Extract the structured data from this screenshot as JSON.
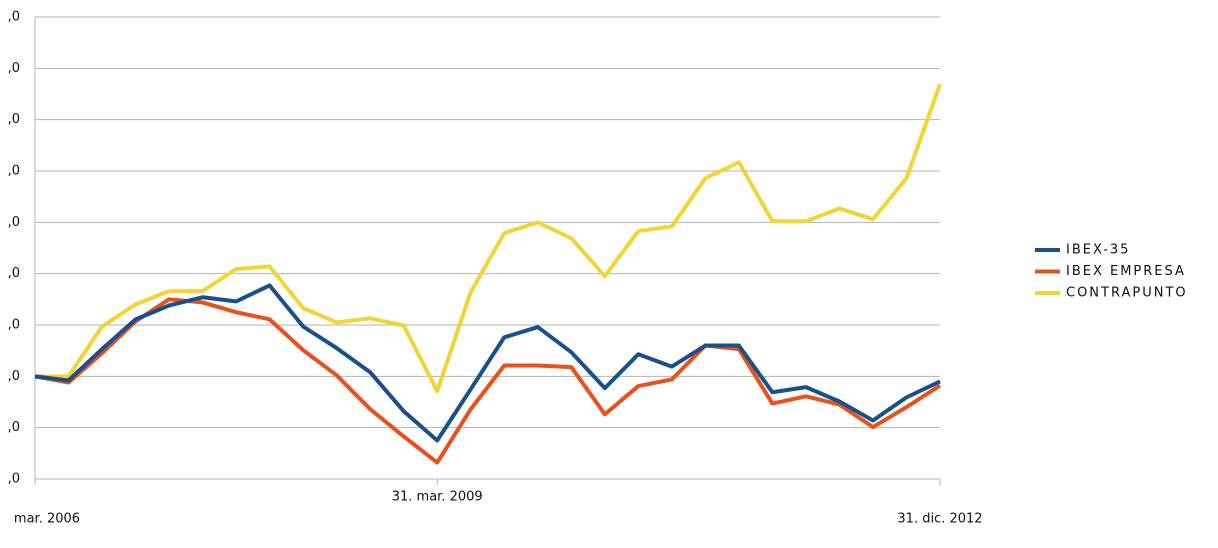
{
  "chart_data": {
    "type": "line",
    "categories": [
      "mar. 2006",
      null,
      null,
      null,
      null,
      null,
      null,
      null,
      null,
      null,
      null,
      null,
      "31. mar. 2009",
      null,
      null,
      null,
      null,
      null,
      null,
      null,
      null,
      null,
      null,
      null,
      null,
      null,
      null,
      "31. dic. 2012"
    ],
    "ylim": [
      80,
      170
    ],
    "yticks": [
      {
        "value": 80,
        "label": ",0"
      },
      {
        "value": 90,
        "label": ",0"
      },
      {
        "value": 100,
        "label": ",0"
      },
      {
        "value": 110,
        "label": ",0"
      },
      {
        "value": 120,
        "label": ",0"
      },
      {
        "value": 130,
        "label": ",0"
      },
      {
        "value": 140,
        "label": ",0"
      },
      {
        "value": 150,
        "label": ",0"
      },
      {
        "value": 160,
        "label": ",0"
      },
      {
        "value": 170,
        "label": ",0"
      }
    ],
    "grid": true,
    "legend": "right",
    "series": [
      {
        "name": "IBEX-35",
        "color": "#17508a",
        "values": [
          100,
          99.2,
          105.3,
          111.1,
          113.8,
          115.4,
          114.6,
          117.7,
          109.7,
          105.5,
          100.8,
          93.2,
          87.5,
          97.5,
          107.6,
          109.6,
          104.7,
          97.7,
          104.3,
          101.9,
          106,
          106,
          96.9,
          97.9,
          95.1,
          91.4,
          95.9,
          99
        ]
      },
      {
        "name": "IBEX EMPRESA",
        "color": "#e8501c",
        "values": [
          100,
          98.8,
          104.5,
          110.7,
          115,
          114.4,
          112.5,
          111.1,
          105.1,
          100.2,
          93.6,
          88.3,
          83.2,
          93.6,
          102.1,
          102.1,
          101.8,
          92.6,
          98.1,
          99.4,
          106,
          105.3,
          94.7,
          96.1,
          94.5,
          90.1,
          94,
          98.2
        ]
      },
      {
        "name": "CONTRAPUNTO",
        "color": "#f2d535",
        "values": [
          100,
          100,
          109.7,
          114,
          116.6,
          116.6,
          120.9,
          121.4,
          113.3,
          110.5,
          111.3,
          109.9,
          97.1,
          116.4,
          127.9,
          130,
          126.9,
          119.5,
          128.3,
          129.2,
          138.6,
          141.7,
          130.2,
          130.2,
          132.7,
          130.6,
          138.6,
          156.9
        ]
      }
    ]
  }
}
